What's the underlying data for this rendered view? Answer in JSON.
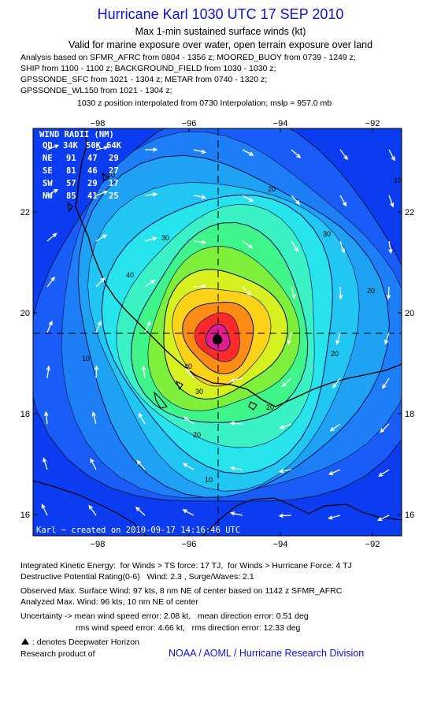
{
  "header": {
    "title": "Hurricane Karl 1030 UTC 17 SEP 2010",
    "subtitle1": "Max 1-min sustained surface winds (kt)",
    "subtitle2": "Valid for marine exposure over water, open terrain exposure over land"
  },
  "analysis_lines": [
    "Analysis based on SFMR_AFRC from 0804 - 1356 z; MOORED_BUOY from 0739 - 1249 z;",
    "SHIP from 1100 - 1100 z; BACKGROUND_FIELD from 1030 - 1030 z;",
    "GPSSONDE_SFC from 1021 - 1304 z; METAR from 0740 - 1320 z;",
    "GPSSONDE_WL150 from 1021 - 1304 z;"
  ],
  "position_line": "1030 z position interpolated from 0730 Interpolation; mslp = 957.0 mb",
  "map": {
    "x_ticks": [
      "−98",
      "−96",
      "−94",
      "−92"
    ],
    "y_ticks": [
      "22",
      "20",
      "18",
      "16"
    ],
    "lon_range": [
      -99.3,
      -91.5
    ],
    "lat_range": [
      15.6,
      23.9
    ],
    "center": {
      "lon": -95.4,
      "lat": 19.6
    },
    "contour_labels": [
      "10",
      "20",
      "30",
      "40",
      "20",
      "20",
      "10",
      "10",
      "30",
      "40",
      "20",
      "10",
      "20",
      "30"
    ],
    "credit": "Karl − created on 2010-09-17 14:16:46 UTC"
  },
  "wind_radii": {
    "title": "WIND RADII (NM)",
    "header": [
      "QD",
      "34K",
      "50K",
      "64K"
    ],
    "rows": [
      [
        "NE",
        "91",
        "47",
        "29"
      ],
      [
        "SE",
        "81",
        "46",
        "27"
      ],
      [
        "SW",
        "57",
        "29",
        "17"
      ],
      [
        "NW",
        "85",
        "41",
        "25"
      ]
    ]
  },
  "footer": {
    "ike": "Integrated Kinetic Energy:  for Winds > TS force: 17 TJ,  for Winds > Hurricane Force: 4 TJ",
    "dpr": "Destructive Potential Rating(0-6)   Wind: 2.3 , Surge/Waves: 2.1",
    "obs": "Observed Max. Surface Wind: 97 kts, 8 nm NE of center based on 1142 z SFMR_AFRC",
    "analyzed": "Analyzed Max. Wind: 96 kts, 10 nm NE of center",
    "unc1": "Uncertainty -> mean wind speed error: 2.08 kt,   mean direction error: 0.51 deg",
    "unc2": "                        rms wind speed error: 4.66 kt,   rms direction error: 12.33 deg",
    "legend": " : denotes Deepwater Horizon",
    "research_label": "Research product of",
    "research_org": "NOAA / AOML / Hurricane Research Division"
  },
  "colors": {
    "title_blue": "#1010d8",
    "ocean_blue": "#0c3cf0",
    "levels": [
      "#1a5cf8",
      "#1e7ef6",
      "#1fa2f4",
      "#22c6f2",
      "#27e4ec",
      "#3af2c4",
      "#3ff58a",
      "#7ef03c",
      "#d6f020",
      "#ffd21a",
      "#ff8c14",
      "#ff2a2a",
      "#e01e8c",
      "#a01890"
    ]
  }
}
